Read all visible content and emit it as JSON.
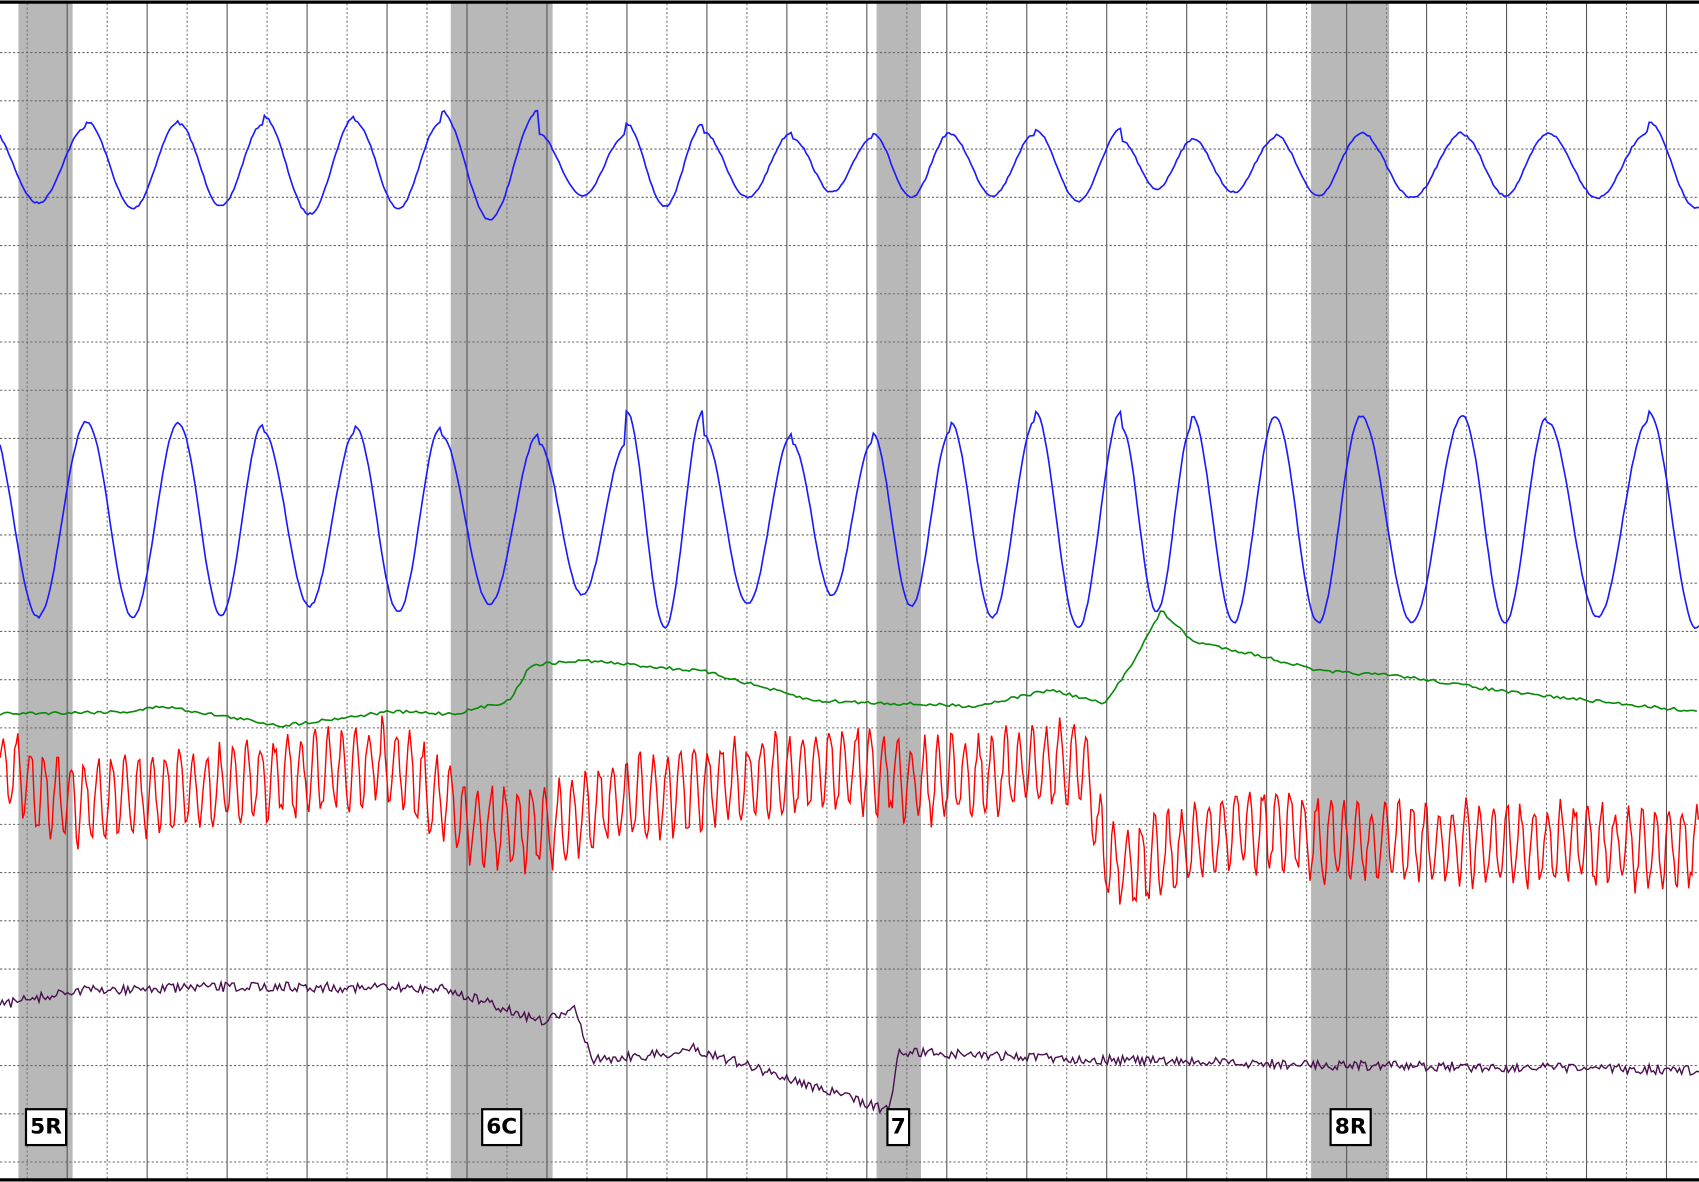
{
  "markers": [
    {
      "label": "5R"
    },
    {
      "label": "6C"
    },
    {
      "label": "7"
    },
    {
      "label": "8R"
    }
  ]
}
